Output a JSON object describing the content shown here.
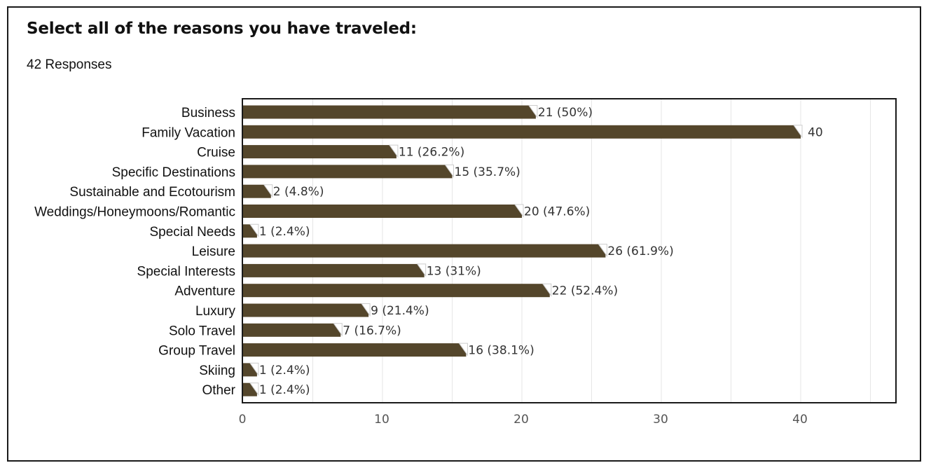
{
  "header": {
    "title": "Select all of the reasons you have traveled:",
    "responses": "42 Responses"
  },
  "colors": {
    "bar": "#54462b",
    "grid": "#e6e6e6",
    "axis": "#1a1a1a"
  },
  "chart_data": {
    "type": "bar",
    "orientation": "horizontal",
    "categories": [
      "Business",
      "Family Vacation",
      "Cruise",
      "Specific Destinations",
      "Sustainable and Ecotourism",
      "Weddings/Honeymoons/Romantic",
      "Special Needs",
      "Leisure",
      "Special Interests",
      "Adventure",
      "Luxury",
      "Solo Travel",
      "Group Travel",
      "Skiing",
      "Other"
    ],
    "values": [
      21,
      40,
      11,
      15,
      2,
      20,
      1,
      26,
      13,
      22,
      9,
      7,
      16,
      1,
      1
    ],
    "data_labels": [
      "21 (50%)",
      "40",
      "11 (26.2%)",
      "15 (35.7%)",
      "2 (4.8%)",
      "20 (47.6%)",
      "1 (2.4%)",
      "26 (61.9%)",
      "13 (31%)",
      "22 (52.4%)",
      "9 (21.4%)",
      "7 (16.7%)",
      "16 (38.1%)",
      "1 (2.4%)",
      "1 (2.4%)"
    ],
    "xticks": [
      0,
      10,
      20,
      30,
      40
    ],
    "xlim": [
      0,
      47
    ],
    "xlabel": "",
    "ylabel": "",
    "grid": true,
    "legend": "none"
  }
}
